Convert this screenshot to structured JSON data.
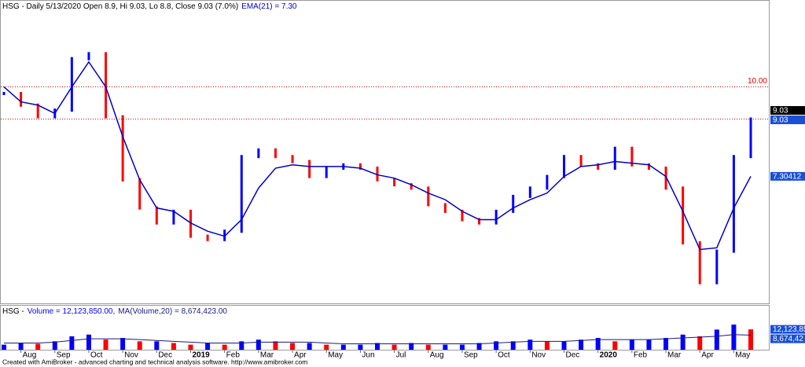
{
  "chart_data": [
    {
      "type": "price",
      "title": "HSG - Daily 5/13/2020 Open 8.9, Hi 9.03, Lo 8.8, Close 9.03 (7.0%)",
      "series": [
        {
          "color": "#0000ff",
          "down_color": "#ff0000",
          "values": [
            9.8,
            9.45,
            9.1,
            9.3,
            10.85,
            11.0,
            9.1,
            7.2,
            6.35,
            5.9,
            6.25,
            5.5,
            5.4,
            5.65,
            7.9,
            8.1,
            7.9,
            7.75,
            7.3,
            7.55,
            7.65,
            7.55,
            7.2,
            7.05,
            6.95,
            6.45,
            6.25,
            6.0,
            5.9,
            6.25,
            6.7,
            6.95,
            7.3,
            7.9,
            7.65,
            7.55,
            8.15,
            7.65,
            7.55,
            6.95,
            5.3,
            4.1,
            5.05,
            7.9,
            9.03
          ]
        },
        {
          "name": "EMA(21) = 7.30",
          "color": "#0000c8",
          "values": [
            10.0,
            9.55,
            9.45,
            9.2,
            10.0,
            10.75,
            10.0,
            8.5,
            7.2,
            6.35,
            6.25,
            5.9,
            5.65,
            5.5,
            6.0,
            6.95,
            7.55,
            7.65,
            7.6,
            7.6,
            7.6,
            7.55,
            7.35,
            7.25,
            7.05,
            6.8,
            6.6,
            6.25,
            6.0,
            6.0,
            6.35,
            6.6,
            6.8,
            7.3,
            7.6,
            7.65,
            7.75,
            7.7,
            7.65,
            7.3,
            6.25,
            5.1,
            5.15,
            6.35,
            7.30412
          ]
        }
      ],
      "ylim": [
        3.5,
        12.5
      ],
      "reference_lines": [
        {
          "value": 10,
          "label": "10.00",
          "color": "#e00000"
        },
        {
          "value": 9.03,
          "color": "#e00000"
        }
      ],
      "price_labels": [
        {
          "value": 9.03,
          "label": "9.03",
          "color": "#000000"
        },
        {
          "value": 9.03,
          "label": "9.03",
          "color": "#1a4fd6"
        },
        {
          "value": 7.30412,
          "label": "7.30412",
          "color": "#1a4fd6"
        }
      ]
    },
    {
      "type": "bar",
      "title": "HSG -",
      "categories": [
        null,
        "Aug",
        null,
        "Sep",
        null,
        "Oct",
        null,
        "Nov",
        null,
        "Dec",
        null,
        "2019",
        null,
        "Feb",
        null,
        "Mar",
        null,
        "Apr",
        null,
        "May",
        null,
        "Jun",
        null,
        "Jul",
        null,
        "Aug",
        null,
        "Sep",
        null,
        "Oct",
        null,
        "Nov",
        null,
        "Dec",
        null,
        "2020",
        null,
        "Feb",
        null,
        "Mar",
        null,
        "Apr",
        null,
        "May",
        null
      ],
      "series": [
        {
          "name": "Volume = 12,123,850.00,",
          "color": "#0000ff",
          "down_color": "#ff0000",
          "values": [
            3000000,
            4000000,
            3500000,
            5000000,
            8000000,
            9000000,
            6000000,
            7000000,
            5000000,
            5000000,
            4000000,
            3000000,
            4000000,
            3000000,
            5000000,
            6000000,
            5000000,
            4000000,
            4000000,
            3000000,
            3000000,
            3000000,
            4000000,
            3000000,
            4000000,
            3000000,
            3000000,
            3000000,
            4000000,
            5000000,
            5000000,
            6000000,
            5000000,
            5000000,
            6000000,
            7000000,
            5000000,
            6000000,
            6000000,
            7000000,
            9000000,
            8000000,
            12000000,
            15000000,
            12123850
          ]
        },
        {
          "name": "MA(Volume,20) = 8,674,423.00",
          "color": "#1a1a80",
          "values": [
            4000000,
            4000000,
            4000000,
            4500000,
            5500000,
            6500000,
            6500000,
            6500000,
            6000000,
            5500000,
            5000000,
            4500000,
            4000000,
            4000000,
            4000000,
            4500000,
            4500000,
            4500000,
            4500000,
            4000000,
            3500000,
            3500000,
            3500000,
            3500000,
            3500000,
            3500000,
            3500000,
            3500000,
            3500000,
            4000000,
            4500000,
            5000000,
            5000000,
            5000000,
            5500000,
            6000000,
            6000000,
            6000000,
            6000000,
            6500000,
            7000000,
            7500000,
            8000000,
            9000000,
            8674423
          ]
        }
      ],
      "ylim": [
        0,
        22000000
      ],
      "price_labels": [
        {
          "value": 12123850,
          "label": "12,123,85",
          "color": "#1a4fd6"
        },
        {
          "value": 8674423,
          "label": "8,674,42",
          "color": "#1a4fd6"
        }
      ]
    }
  ],
  "footer": "Created with AmiBroker - advanced charting and technical analysis software. http://www.amibroker.com"
}
